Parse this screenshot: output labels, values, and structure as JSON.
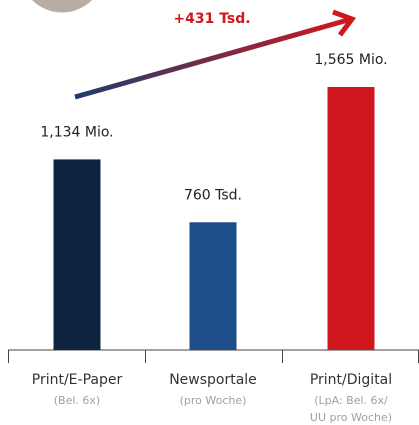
{
  "chart_data": {
    "type": "bar",
    "annotation": "+431 Tsd.",
    "categories": [
      "Print/E-Paper",
      "Newsportale",
      "Print/Digital"
    ],
    "sublabels": [
      "(Bel. 6x)",
      "(pro Woche)",
      "(LpA: Bel. 6x/ UU pro Woche)"
    ],
    "values": [
      1134,
      760,
      1565
    ],
    "value_labels": [
      "1,134 Mio.",
      "760 Tsd.",
      "1,565 Mio."
    ],
    "colors": [
      "#0e2340",
      "#1e4d8c",
      "#cf171d"
    ]
  }
}
